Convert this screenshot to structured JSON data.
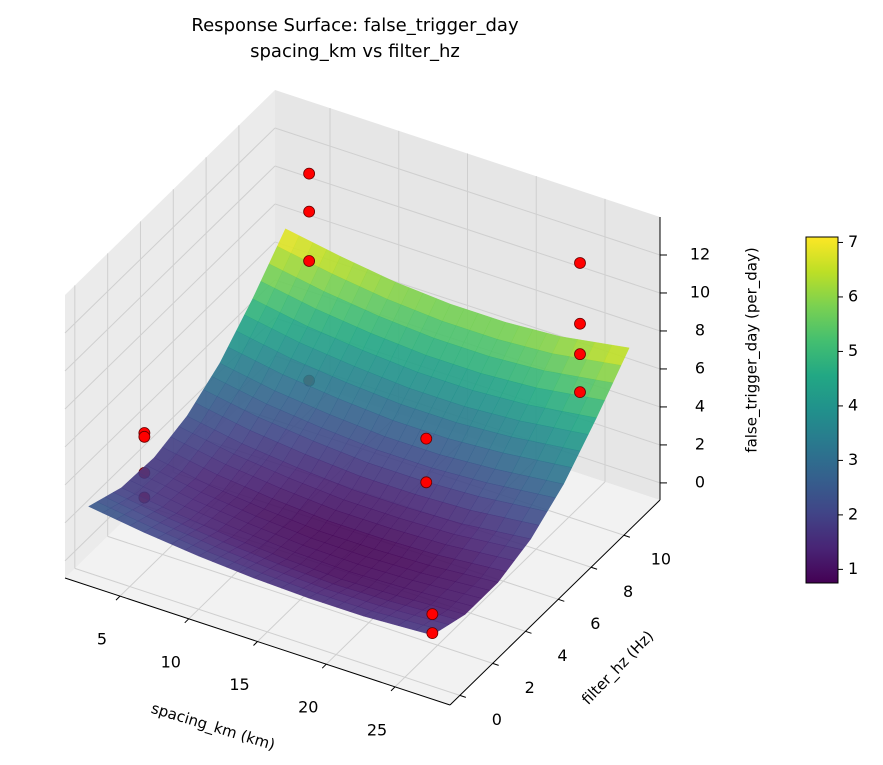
{
  "chart_data": {
    "type": "surface3d",
    "title": "Response Surface: false_trigger_day",
    "subtitle": "spacing_km vs filter_hz",
    "x_label": "spacing_km (km)",
    "y_label": "filter_hz (Hz)",
    "z_label": "false_trigger_day (per_day)",
    "xlim": [
      1,
      29
    ],
    "ylim": [
      -0.6,
      12.2
    ],
    "zlim": [
      -0.9,
      14
    ],
    "xticks": [
      5,
      10,
      15,
      20,
      25
    ],
    "yticks": [
      0,
      2,
      4,
      6,
      8,
      10
    ],
    "zticks": [
      0,
      2,
      4,
      6,
      8,
      10,
      12
    ],
    "grid": true,
    "colormap": "viridis",
    "clim": [
      0.75,
      7.1
    ],
    "cticks": [
      1,
      2,
      3,
      4,
      5,
      6,
      7
    ],
    "surface": {
      "x": [
        2,
        6,
        10,
        14,
        18,
        22,
        27
      ],
      "y": [
        0,
        2,
        4,
        6,
        8,
        10,
        12
      ],
      "z": [
        [
          2.6,
          2.2,
          1.9,
          1.7,
          1.6,
          1.6,
          1.8
        ],
        [
          1.9,
          1.5,
          1.2,
          1.0,
          0.9,
          1.0,
          1.2
        ],
        [
          1.8,
          1.3,
          1.0,
          0.8,
          0.8,
          0.9,
          1.2
        ],
        [
          2.3,
          1.8,
          1.5,
          1.3,
          1.3,
          1.4,
          1.8
        ],
        [
          3.4,
          2.9,
          2.6,
          2.4,
          2.4,
          2.6,
          3.0
        ],
        [
          5.1,
          4.6,
          4.3,
          4.1,
          4.1,
          4.3,
          4.8
        ],
        [
          7.1,
          6.6,
          6.2,
          6.0,
          6.0,
          6.2,
          6.8
        ]
      ]
    },
    "points": {
      "color": "#ff0000",
      "x": [
        2,
        2,
        2,
        2,
        22.5,
        22.5,
        27,
        27,
        27,
        27,
        27,
        27,
        7.3,
        7.3,
        7.3,
        7.3
      ],
      "y": [
        3.4,
        3.4,
        3.4,
        3.4,
        3.4,
        3.4,
        0,
        0,
        9,
        9,
        9,
        9,
        9,
        9,
        9,
        9
      ],
      "z": [
        3.6,
        3.4,
        1.5,
        0.2,
        8.2,
        5.9,
        2.9,
        1.9,
        13.8,
        10.6,
        9.0,
        7.0,
        13.8,
        11.8,
        9.2,
        2.9
      ]
    }
  }
}
